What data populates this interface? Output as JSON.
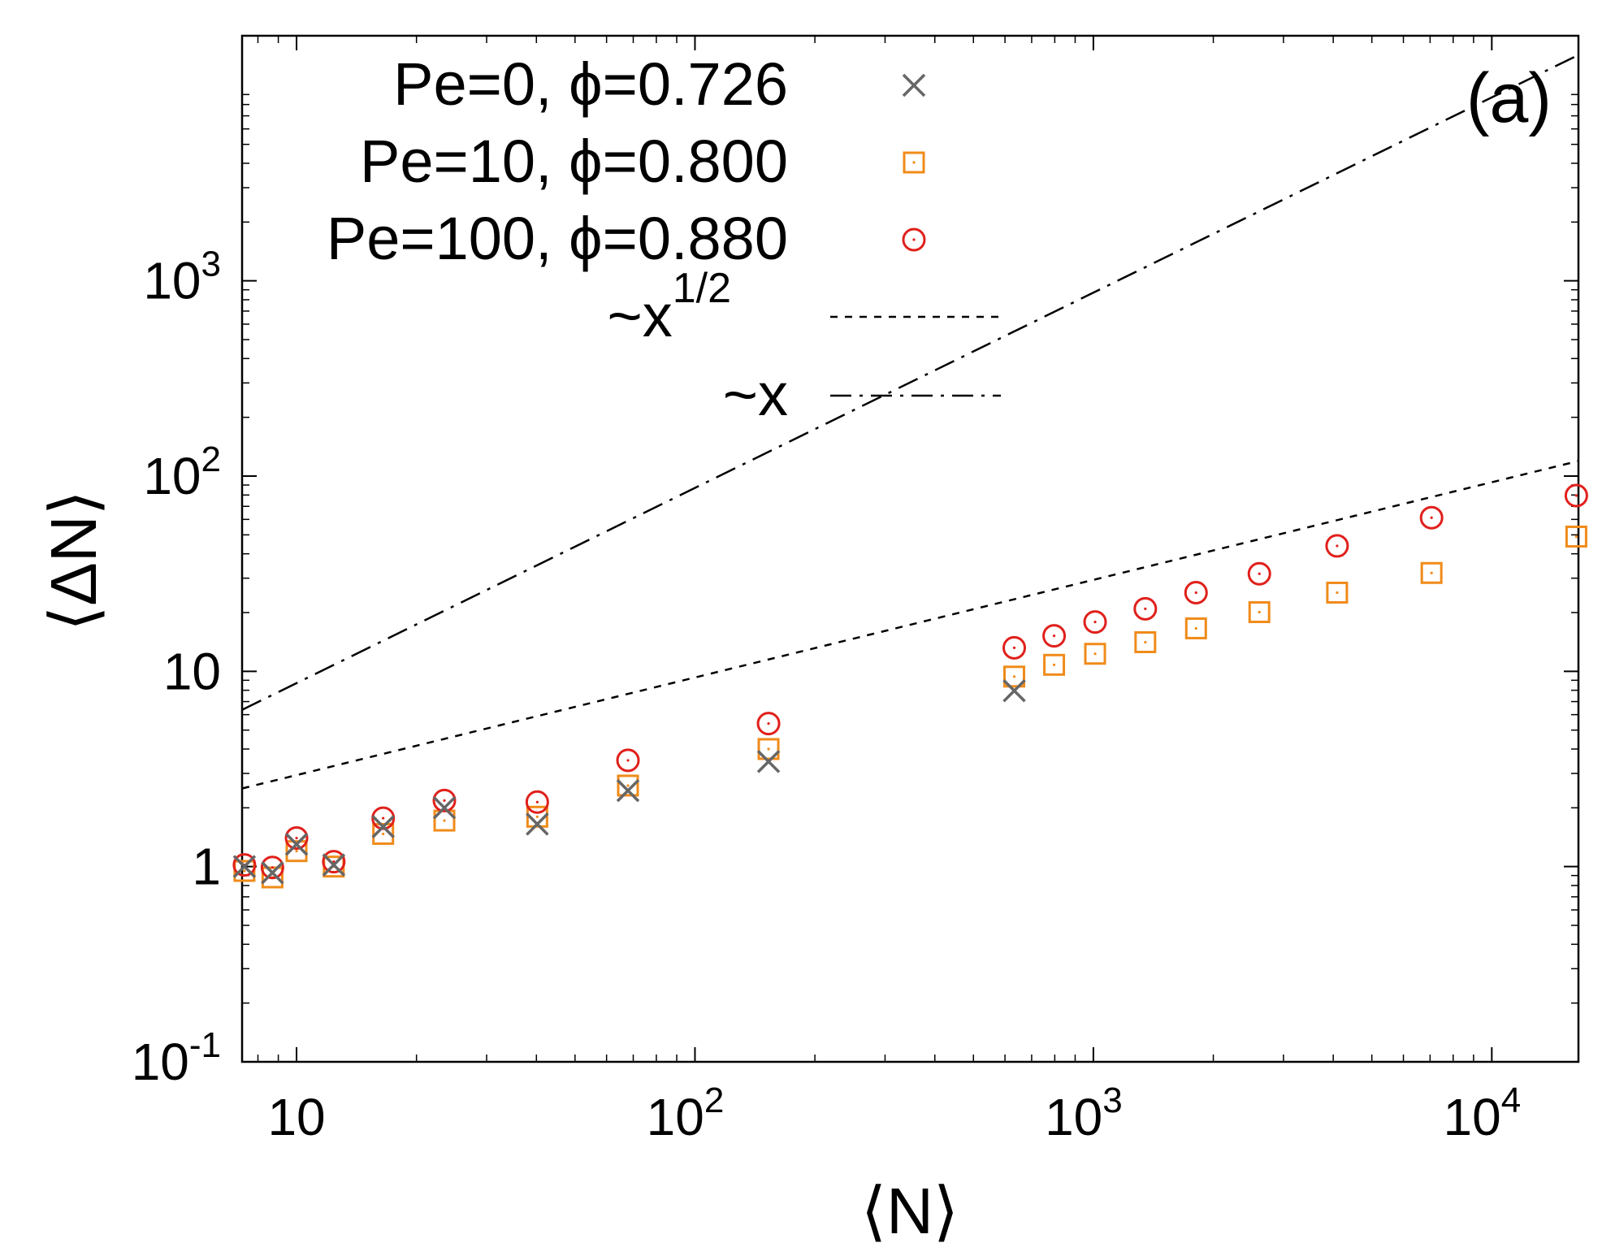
{
  "chart_data": {
    "type": "scatter",
    "panel_label": "(a)",
    "xlabel": "⟨N⟩",
    "ylabel": "⟨ΔN⟩",
    "x_scale": "log",
    "y_scale": "log",
    "xlim": [
      7.3,
      16500
    ],
    "ylim": [
      0.1,
      18000
    ],
    "x_ticks": [
      {
        "value": 10,
        "base": "10",
        "exp": ""
      },
      {
        "value": 100,
        "base": "10",
        "exp": "2"
      },
      {
        "value": 1000,
        "base": "10",
        "exp": "3"
      },
      {
        "value": 10000,
        "base": "10",
        "exp": "4"
      }
    ],
    "y_ticks": [
      {
        "value": 0.1,
        "base": "10",
        "exp": "-1"
      },
      {
        "value": 1,
        "base": "1",
        "exp": ""
      },
      {
        "value": 10,
        "base": "10",
        "exp": ""
      },
      {
        "value": 100,
        "base": "10",
        "exp": "2"
      },
      {
        "value": 1000,
        "base": "10",
        "exp": "3"
      }
    ],
    "grid": false,
    "legend_position": "top-left",
    "series": [
      {
        "name": "Pe=0, ϕ=0.726",
        "marker": "cross",
        "color": "#666666",
        "points": [
          [
            7.4,
            1.0
          ],
          [
            8.7,
            0.93
          ],
          [
            10.0,
            1.3
          ],
          [
            12.4,
            1.02
          ],
          [
            16.5,
            1.6
          ],
          [
            23.5,
            2.0
          ],
          [
            40.2,
            1.65
          ],
          [
            67.9,
            2.45
          ],
          [
            153.0,
            3.45
          ],
          [
            633.0,
            7.95
          ]
        ]
      },
      {
        "name": "Pe=10, ϕ=0.800",
        "marker": "square",
        "color": "#f08b1a",
        "points": [
          [
            7.4,
            0.95
          ],
          [
            8.7,
            0.88
          ],
          [
            10.0,
            1.2
          ],
          [
            12.4,
            1.0
          ],
          [
            16.5,
            1.47
          ],
          [
            23.5,
            1.72
          ],
          [
            40.2,
            1.8
          ],
          [
            67.9,
            2.6
          ],
          [
            153.0,
            4.0
          ],
          [
            633.0,
            9.4
          ],
          [
            797.0,
            10.8
          ],
          [
            1010.0,
            12.3
          ],
          [
            1350.0,
            14.1
          ],
          [
            1810.0,
            16.6
          ],
          [
            2610.0,
            20.1
          ],
          [
            4090.0,
            25.3
          ],
          [
            7060.0,
            31.9
          ],
          [
            16300.0,
            49.0
          ]
        ]
      },
      {
        "name": "Pe=100, ϕ=0.880",
        "marker": "circle",
        "color": "#e0201b",
        "points": [
          [
            7.4,
            1.02
          ],
          [
            8.7,
            0.99
          ],
          [
            10.0,
            1.4
          ],
          [
            12.4,
            1.06
          ],
          [
            16.5,
            1.77
          ],
          [
            23.5,
            2.18
          ],
          [
            40.2,
            2.14
          ],
          [
            67.9,
            3.5
          ],
          [
            153.0,
            5.4
          ],
          [
            633.0,
            13.2
          ],
          [
            797.0,
            15.2
          ],
          [
            1010.0,
            17.9
          ],
          [
            1350.0,
            20.9
          ],
          [
            1810.0,
            25.3
          ],
          [
            2610.0,
            31.6
          ],
          [
            4090.0,
            43.9
          ],
          [
            7060.0,
            61.2
          ],
          [
            16300.0,
            79.5
          ]
        ]
      }
    ],
    "reference_lines": [
      {
        "name": "~x",
        "sup": "1/2",
        "exponent": 0.5,
        "prefactor": 0.93,
        "dash": "9,9"
      },
      {
        "name": "~x",
        "sup": "",
        "exponent": 1.0,
        "prefactor": 0.87,
        "dash": "26,10,4,10"
      }
    ]
  }
}
